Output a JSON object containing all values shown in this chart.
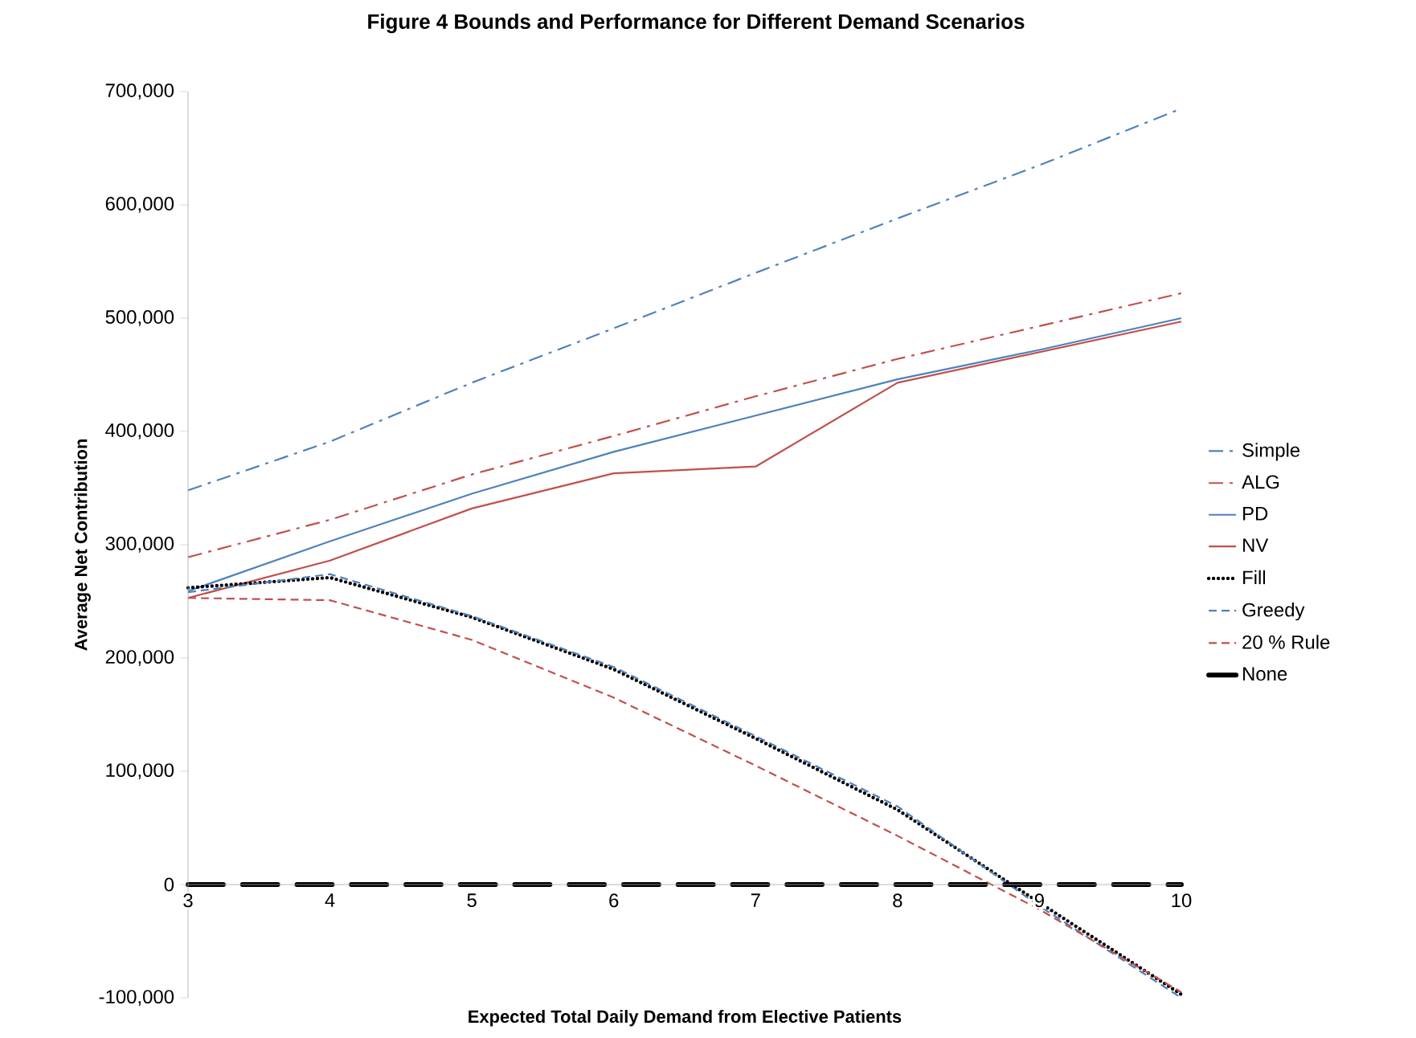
{
  "chart_data": {
    "type": "line",
    "title": "Figure 4     Bounds and Performance for Different Demand Scenarios",
    "xlabel": "Expected Total Daily Demand from Elective Patients",
    "ylabel": "Average Net Contribution",
    "x": [
      3,
      4,
      5,
      6,
      7,
      8,
      9,
      10
    ],
    "xlim": [
      3,
      10
    ],
    "xticks": [
      3,
      4,
      5,
      6,
      7,
      8,
      9,
      10
    ],
    "ylim": [
      -100000,
      700000
    ],
    "yticks": [
      {
        "value": -100000,
        "label": "-100,000"
      },
      0,
      {
        "value": 100000,
        "label": "100,000"
      },
      {
        "value": 200000,
        "label": "200,000"
      },
      {
        "value": 300000,
        "label": "300,000"
      },
      {
        "value": 400000,
        "label": "400,000"
      },
      {
        "value": 500000,
        "label": "500,000"
      },
      {
        "value": 600000,
        "label": "600,000"
      },
      {
        "value": 700000,
        "label": "700,000"
      }
    ],
    "grid": false,
    "legend": "right",
    "marker": "none",
    "series": [
      {
        "name": "Simple",
        "color": "#4f81bd",
        "line_style": "dashdot",
        "values": [
          348000,
          391000,
          443000,
          491000,
          540000,
          588000,
          635000,
          685000
        ]
      },
      {
        "name": "ALG",
        "color": "#c0504d",
        "line_style": "dashdot",
        "values": [
          289000,
          322000,
          362000,
          396000,
          431000,
          464000,
          493000,
          522000
        ]
      },
      {
        "name": "PD",
        "color": "#4f81bd",
        "line_style": "solid",
        "values": [
          259000,
          303000,
          345000,
          382000,
          414000,
          446000,
          472000,
          500000
        ]
      },
      {
        "name": "NV",
        "color": "#c0504d",
        "line_style": "solid",
        "values": [
          253000,
          286000,
          332000,
          363000,
          369000,
          443000,
          470000,
          497000
        ]
      },
      {
        "name": "Fill",
        "color": "#000000",
        "line_style": "dotted",
        "values": [
          262000,
          271000,
          236000,
          190000,
          129000,
          66000,
          -16000,
          -97000
        ]
      },
      {
        "name": "Greedy",
        "color": "#4f81bd",
        "line_style": "dashed",
        "values": [
          258000,
          274000,
          237000,
          192000,
          131000,
          69000,
          -19000,
          -100000
        ]
      },
      {
        "name": "20 % Rule",
        "color": "#c0504d",
        "line_style": "dashed",
        "values": [
          253000,
          251000,
          216000,
          165000,
          105000,
          43000,
          -22000,
          -95000
        ]
      },
      {
        "name": "None",
        "color": "#000000",
        "line_style": "longdash",
        "values": [
          0,
          0,
          0,
          0,
          0,
          0,
          0,
          0
        ]
      }
    ]
  }
}
